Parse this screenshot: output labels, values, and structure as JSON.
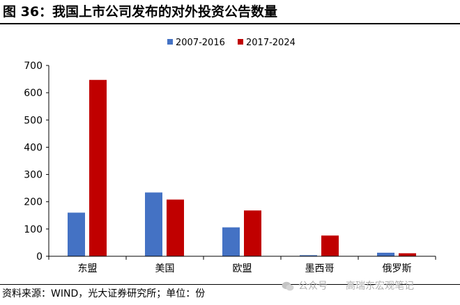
{
  "title": "图 36：我国上市公司发布的对外投资公告数量",
  "source": "资料来源：WIND，光大证券研究所；单位：份",
  "watermark": {
    "account_label": "公众号",
    "name": "高瑞东宏观笔记"
  },
  "chart_data": {
    "type": "bar",
    "title": "",
    "xlabel": "",
    "ylabel": "",
    "ylim": [
      0,
      700
    ],
    "yticks": [
      0,
      100,
      200,
      300,
      400,
      500,
      600,
      700
    ],
    "grid": false,
    "legend_position": "top-center",
    "categories": [
      "东盟",
      "美国",
      "欧盟",
      "墨西哥",
      "俄罗斯"
    ],
    "series": [
      {
        "name": "2007-2016",
        "color": "#4472c4",
        "values": [
          160,
          234,
          106,
          4,
          13
        ]
      },
      {
        "name": "2017-2024",
        "color": "#c00000",
        "values": [
          647,
          208,
          168,
          76,
          11
        ]
      }
    ]
  }
}
